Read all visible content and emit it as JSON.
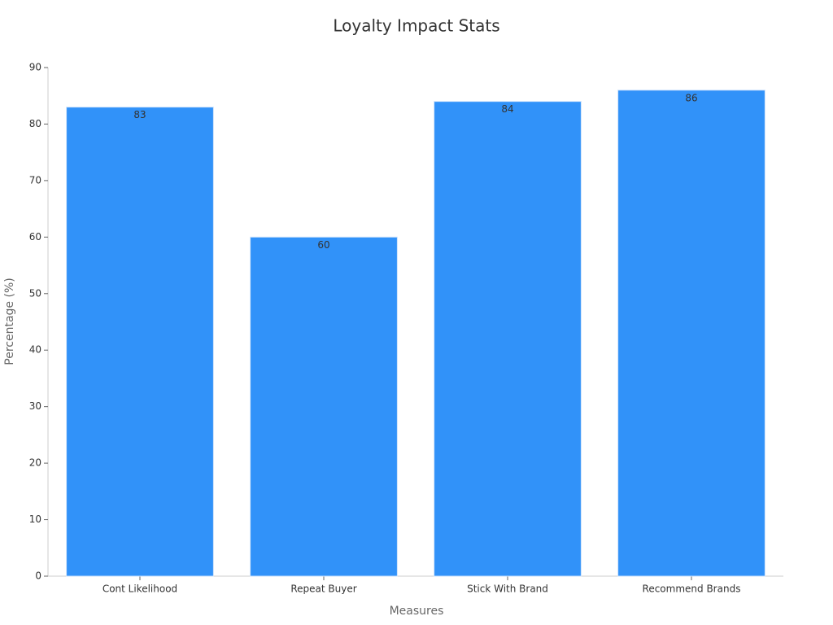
{
  "chart_data": {
    "type": "bar",
    "title": "Loyalty Impact Stats",
    "x_label": "Measures",
    "y_label": "Percentage (%)",
    "categories": [
      "Cont Likelihood",
      "Repeat Buyer",
      "Stick With Brand",
      "Recommend Brands"
    ],
    "values": [
      83,
      60,
      84,
      86
    ],
    "color": "#3192f9",
    "ylim": [
      0,
      90
    ],
    "yticks": [
      0,
      10,
      20,
      30,
      40,
      50,
      60,
      70,
      80,
      90
    ],
    "grid": false
  }
}
